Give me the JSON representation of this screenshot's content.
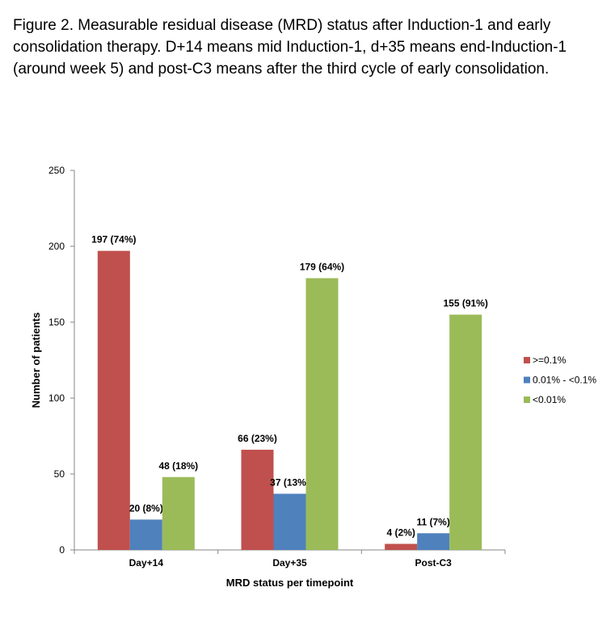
{
  "caption": "Figure 2.  Measurable residual disease (MRD) status after Induction-1 and early consolidation therapy. D+14 means mid Induction-1, d+35 means end-Induction-1 (around week 5) and post-C3 means after the third cycle of early consolidation.",
  "chart_data": {
    "type": "bar",
    "title": "",
    "xlabel": "MRD status per timepoint",
    "ylabel": "Number of patients",
    "ylim": [
      0,
      250
    ],
    "yticks": [
      0,
      50,
      100,
      150,
      200,
      250
    ],
    "categories": [
      "Day+14",
      "Day+35",
      "Post-C3"
    ],
    "legend_position": "right",
    "grid": false,
    "series": [
      {
        "name": ">=0.1%",
        "color": "#C0504D",
        "values": [
          197,
          66,
          4
        ],
        "labels": [
          "197 (74%)",
          "66 (23%)",
          "4 (2%)"
        ]
      },
      {
        "name": "0.01% - <0.1%",
        "color": "#4F81BD",
        "values": [
          20,
          37,
          11
        ],
        "labels": [
          "20 (8%)",
          "37 (13%)",
          "11 (7%)"
        ]
      },
      {
        "name": "<0.01%",
        "color": "#9BBB59",
        "values": [
          48,
          179,
          155
        ],
        "labels": [
          "48 (18%)",
          "179 (64%)",
          "155 (91%)"
        ]
      }
    ]
  }
}
